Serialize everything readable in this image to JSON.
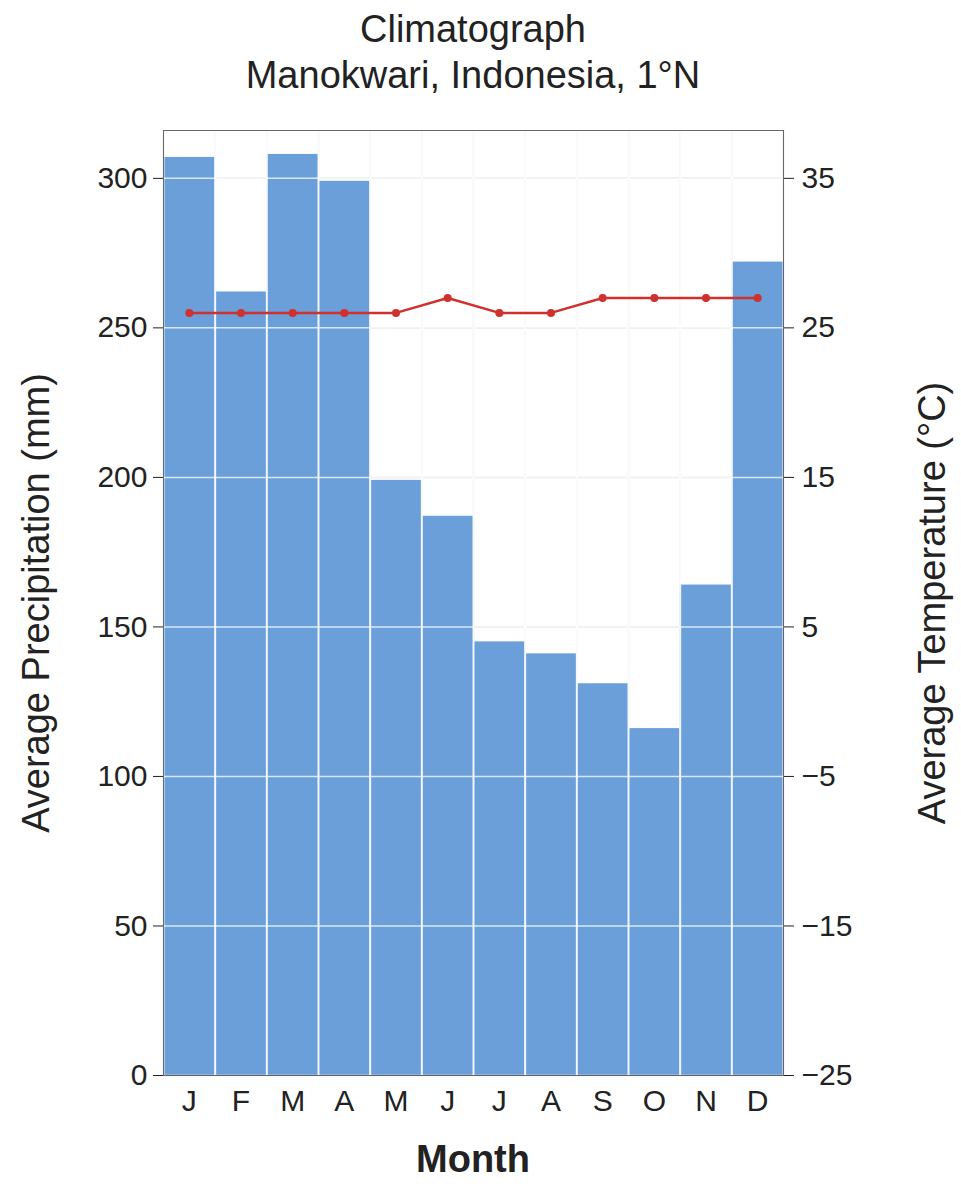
{
  "chart_data": {
    "type": "bar",
    "title": "Climatograph",
    "subtitle": "Manokwari, Indonesia, 1°N",
    "x_label": "Month",
    "y_label": "Average Precipitation (mm)",
    "y2_label": "Average Temperature (°C)",
    "categories": [
      "J",
      "F",
      "M",
      "A",
      "M",
      "J",
      "J",
      "A",
      "S",
      "O",
      "N",
      "D"
    ],
    "series": [
      {
        "type": "bar",
        "color": "#6b9fd9",
        "values": [
          307,
          262,
          308,
          299,
          199,
          187,
          145,
          141,
          131,
          116,
          164,
          272
        ]
      },
      {
        "type": "line",
        "axis": "y2",
        "color": "#d0312d",
        "marker": "circle",
        "values": [
          26,
          26,
          26,
          26,
          26,
          27,
          26,
          26,
          27,
          27,
          27,
          27
        ]
      }
    ],
    "ylim": [
      0,
      316
    ],
    "yticks": [
      0,
      50,
      100,
      150,
      200,
      250,
      300
    ],
    "y2lim": [
      -25,
      38.2
    ],
    "y2ticks": [
      -25,
      -15,
      -5,
      5,
      15,
      25,
      35
    ],
    "grid": true
  }
}
